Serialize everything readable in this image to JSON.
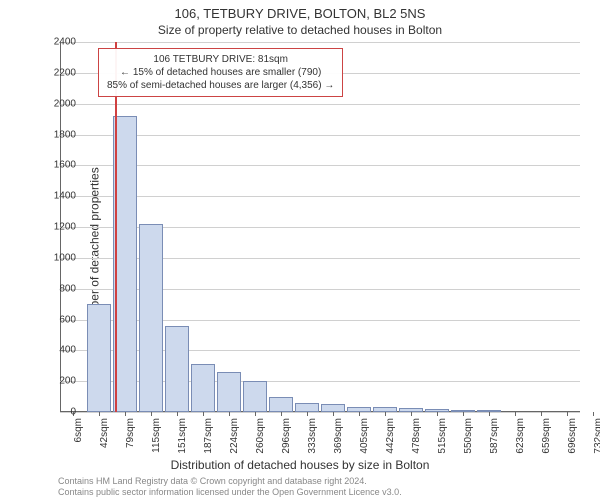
{
  "title": "106, TETBURY DRIVE, BOLTON, BL2 5NS",
  "subtitle": "Size of property relative to detached houses in Bolton",
  "y_axis_label": "Number of detached properties",
  "x_axis_label": "Distribution of detached houses by size in Bolton",
  "chart": {
    "type": "histogram",
    "background_color": "#ffffff",
    "grid_color": "#d0d0d0",
    "bar_fill": "#cdd9ed",
    "bar_border": "#7a8db5",
    "marker_color": "#d04040",
    "info_border": "#cc4444",
    "ylim": [
      0,
      2400
    ],
    "ytick_step": 200,
    "y_ticks": [
      0,
      200,
      400,
      600,
      800,
      1000,
      1200,
      1400,
      1600,
      1800,
      2000,
      2200,
      2400
    ],
    "x_tick_labels": [
      "6sqm",
      "42sqm",
      "79sqm",
      "115sqm",
      "151sqm",
      "187sqm",
      "224sqm",
      "260sqm",
      "296sqm",
      "333sqm",
      "369sqm",
      "405sqm",
      "442sqm",
      "478sqm",
      "515sqm",
      "550sqm",
      "587sqm",
      "623sqm",
      "659sqm",
      "696sqm",
      "732sqm"
    ],
    "bars": [
      {
        "x_index": 0,
        "value": 0
      },
      {
        "x_index": 1,
        "value": 700
      },
      {
        "x_index": 2,
        "value": 1920
      },
      {
        "x_index": 3,
        "value": 1220
      },
      {
        "x_index": 4,
        "value": 560
      },
      {
        "x_index": 5,
        "value": 310
      },
      {
        "x_index": 6,
        "value": 260
      },
      {
        "x_index": 7,
        "value": 200
      },
      {
        "x_index": 8,
        "value": 100
      },
      {
        "x_index": 9,
        "value": 60
      },
      {
        "x_index": 10,
        "value": 55
      },
      {
        "x_index": 11,
        "value": 35
      },
      {
        "x_index": 12,
        "value": 30
      },
      {
        "x_index": 13,
        "value": 25
      },
      {
        "x_index": 14,
        "value": 20
      },
      {
        "x_index": 15,
        "value": 15
      },
      {
        "x_index": 16,
        "value": 12
      },
      {
        "x_index": 17,
        "value": 0
      },
      {
        "x_index": 18,
        "value": 0
      },
      {
        "x_index": 19,
        "value": 0
      }
    ],
    "marker_position": 2.1,
    "info_box": {
      "line1": "106 TETBURY DRIVE: 81sqm",
      "line2": "← 15% of detached houses are smaller (790)",
      "line3": "85% of semi-detached houses are larger (4,356) →"
    }
  },
  "footer": {
    "line1": "Contains HM Land Registry data © Crown copyright and database right 2024.",
    "line2": "Contains public sector information licensed under the Open Government Licence v3.0."
  }
}
